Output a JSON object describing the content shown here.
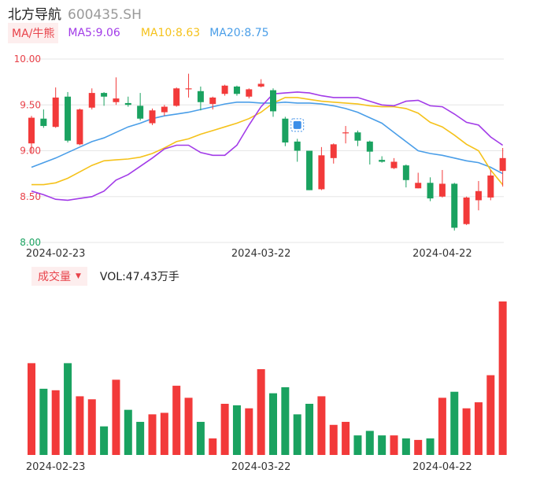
{
  "header": {
    "name": "北方导航",
    "code": "600435.SH"
  },
  "legend": {
    "ma_tag": "MA/牛熊",
    "ma5": "MA5:9.06",
    "ma10": "MA10:8.63",
    "ma20": "MA20:8.75"
  },
  "volume": {
    "tag": "成交量",
    "value": "VOL:47.43万手"
  },
  "colors": {
    "up": "#f23a3a",
    "down": "#1aa260",
    "ma5": "#a23be8",
    "ma10": "#f5c21b",
    "ma20": "#4a9ee8",
    "grid": "#e6e6e6",
    "price_label": "#e8424a",
    "low_label": "#1aa260"
  },
  "chart_data": {
    "type": "candlestick",
    "price_axis": {
      "ticks": [
        "10.00",
        "9.50",
        "9.00",
        "8.50",
        "8.00"
      ],
      "range": [
        8.0,
        10.0
      ]
    },
    "date_ticks": [
      {
        "label": "2024-02-23",
        "index": 2
      },
      {
        "label": "2024-03-22",
        "index": 19
      },
      {
        "label": "2024-04-22",
        "index": 34
      }
    ],
    "candles": [
      {
        "o": 9.08,
        "c": 9.36,
        "h": 9.38,
        "l": 8.98
      },
      {
        "o": 9.35,
        "c": 9.27,
        "h": 9.45,
        "l": 9.25
      },
      {
        "o": 9.26,
        "c": 9.58,
        "h": 9.69,
        "l": 9.25
      },
      {
        "o": 9.59,
        "c": 9.11,
        "h": 9.64,
        "l": 9.09
      },
      {
        "o": 9.07,
        "c": 9.45,
        "h": 9.46,
        "l": 9.06
      },
      {
        "o": 9.47,
        "c": 9.63,
        "h": 9.68,
        "l": 9.45
      },
      {
        "o": 9.63,
        "c": 9.59,
        "h": 9.64,
        "l": 9.49
      },
      {
        "o": 9.53,
        "c": 9.57,
        "h": 9.8,
        "l": 9.5
      },
      {
        "o": 9.52,
        "c": 9.5,
        "h": 9.59,
        "l": 9.48
      },
      {
        "o": 9.49,
        "c": 9.35,
        "h": 9.63,
        "l": 9.33
      },
      {
        "o": 9.3,
        "c": 9.44,
        "h": 9.46,
        "l": 9.28
      },
      {
        "o": 9.42,
        "c": 9.48,
        "h": 9.5,
        "l": 9.38
      },
      {
        "o": 9.49,
        "c": 9.68,
        "h": 9.69,
        "l": 9.48
      },
      {
        "o": 9.68,
        "c": 9.68,
        "h": 9.84,
        "l": 9.58
      },
      {
        "o": 9.65,
        "c": 9.53,
        "h": 9.7,
        "l": 9.44
      },
      {
        "o": 9.51,
        "c": 9.58,
        "h": 9.59,
        "l": 9.45
      },
      {
        "o": 9.62,
        "c": 9.71,
        "h": 9.72,
        "l": 9.6
      },
      {
        "o": 9.7,
        "c": 9.62,
        "h": 9.71,
        "l": 9.6
      },
      {
        "o": 9.59,
        "c": 9.67,
        "h": 9.68,
        "l": 9.57
      },
      {
        "o": 9.7,
        "c": 9.73,
        "h": 9.78,
        "l": 9.69
      },
      {
        "o": 9.66,
        "c": 9.43,
        "h": 9.68,
        "l": 9.37
      },
      {
        "o": 9.35,
        "c": 9.09,
        "h": 9.37,
        "l": 9.05
      },
      {
        "o": 9.1,
        "c": 9.0,
        "h": 9.13,
        "l": 8.88
      },
      {
        "o": 9.0,
        "c": 8.57,
        "h": 9.0,
        "l": 8.57
      },
      {
        "o": 8.58,
        "c": 8.95,
        "h": 9.04,
        "l": 8.57
      },
      {
        "o": 8.92,
        "c": 9.07,
        "h": 9.08,
        "l": 8.86
      },
      {
        "o": 9.19,
        "c": 9.2,
        "h": 9.27,
        "l": 9.08
      },
      {
        "o": 9.2,
        "c": 9.11,
        "h": 9.22,
        "l": 9.05
      },
      {
        "o": 9.1,
        "c": 8.99,
        "h": 9.11,
        "l": 8.85
      },
      {
        "o": 8.9,
        "c": 8.88,
        "h": 8.94,
        "l": 8.87
      },
      {
        "o": 8.81,
        "c": 8.88,
        "h": 8.92,
        "l": 8.8
      },
      {
        "o": 8.84,
        "c": 8.68,
        "h": 8.85,
        "l": 8.6
      },
      {
        "o": 8.59,
        "c": 8.65,
        "h": 8.76,
        "l": 8.59
      },
      {
        "o": 8.65,
        "c": 8.48,
        "h": 8.71,
        "l": 8.45
      },
      {
        "o": 8.5,
        "c": 8.64,
        "h": 8.79,
        "l": 8.49
      },
      {
        "o": 8.64,
        "c": 8.16,
        "h": 8.65,
        "l": 8.13
      },
      {
        "o": 8.2,
        "c": 8.49,
        "h": 8.5,
        "l": 8.19
      },
      {
        "o": 8.46,
        "c": 8.56,
        "h": 8.67,
        "l": 8.35
      },
      {
        "o": 8.49,
        "c": 8.73,
        "h": 8.79,
        "l": 8.46
      },
      {
        "o": 8.78,
        "c": 8.92,
        "h": 9.03,
        "l": 8.61
      }
    ],
    "ma5": [
      8.56,
      8.52,
      8.47,
      8.46,
      8.48,
      8.5,
      8.56,
      8.68,
      8.74,
      8.83,
      8.92,
      9.02,
      9.06,
      9.06,
      8.98,
      8.95,
      8.95,
      9.06,
      9.28,
      9.48,
      9.62,
      9.63,
      9.64,
      9.63,
      9.6,
      9.58,
      9.58,
      9.58,
      9.54,
      9.5,
      9.49,
      9.54,
      9.55,
      9.49,
      9.48,
      9.4,
      9.31,
      9.28,
      9.15,
      9.06
    ],
    "ma10": [
      8.63,
      8.63,
      8.65,
      8.7,
      8.77,
      8.84,
      8.89,
      8.9,
      8.91,
      8.93,
      8.97,
      9.03,
      9.1,
      9.13,
      9.18,
      9.22,
      9.26,
      9.3,
      9.35,
      9.42,
      9.52,
      9.58,
      9.58,
      9.56,
      9.54,
      9.53,
      9.52,
      9.51,
      9.49,
      9.48,
      9.48,
      9.46,
      9.41,
      9.31,
      9.26,
      9.17,
      9.07,
      9.0,
      8.79,
      8.63
    ],
    "ma20": [
      8.82,
      8.87,
      8.92,
      8.98,
      9.04,
      9.1,
      9.14,
      9.2,
      9.26,
      9.3,
      9.35,
      9.38,
      9.4,
      9.42,
      9.45,
      9.48,
      9.51,
      9.53,
      9.53,
      9.52,
      9.52,
      9.53,
      9.52,
      9.52,
      9.51,
      9.49,
      9.46,
      9.42,
      9.36,
      9.3,
      9.2,
      9.1,
      9.0,
      8.97,
      8.95,
      8.92,
      8.89,
      8.87,
      8.82,
      8.75
    ],
    "volumes": [
      61,
      44,
      43,
      61,
      39,
      37,
      19,
      50,
      30,
      22,
      27,
      28,
      46,
      38,
      22,
      11,
      34,
      33,
      31,
      57,
      41,
      45,
      27,
      34,
      39,
      20,
      22,
      13,
      16,
      13,
      13,
      11,
      10,
      11,
      38,
      42,
      31,
      35,
      53,
      102
    ],
    "volume_max": 102
  }
}
